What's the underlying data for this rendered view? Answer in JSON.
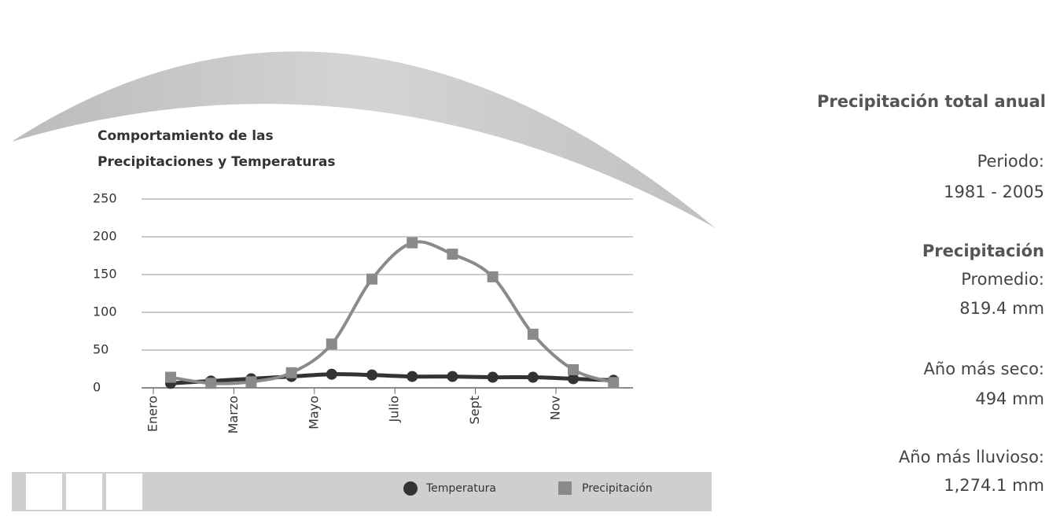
{
  "chart_data": {
    "type": "line",
    "title_lines": [
      "Comportamiento de las",
      "Precipitaciones y Temperaturas"
    ],
    "categories": [
      "Enero",
      null,
      "Marzo",
      null,
      "Mayo",
      null,
      "Julio",
      null,
      "Sept",
      null,
      "Nov",
      null
    ],
    "series": [
      {
        "name": "Temperatura",
        "color": "#333333",
        "marker": "circle",
        "values": [
          6,
          9,
          12,
          15,
          18,
          17,
          15,
          15,
          14,
          14,
          12,
          10
        ]
      },
      {
        "name": "Precipitación",
        "color": "#8a8a8a",
        "marker": "square",
        "values": [
          14,
          6,
          8,
          20,
          58,
          144,
          192,
          177,
          147,
          71,
          24,
          7
        ]
      }
    ],
    "ylim": [
      0,
      250
    ],
    "yticks": [
      0,
      50,
      100,
      150,
      200,
      250
    ],
    "grid": true,
    "legend": "bottom-right"
  },
  "panel": {
    "heading": "Precipitación total anual",
    "period_label": "Periodo:",
    "period": "1981 - 2005",
    "subheading": "Precipitación",
    "average_label": "Promedio:",
    "average": "819.4 mm",
    "driest_label": "Año más seco:",
    "driest": "494 mm",
    "wettest_label": "Año más lluvioso:",
    "wettest": "1,274.1 mm"
  }
}
